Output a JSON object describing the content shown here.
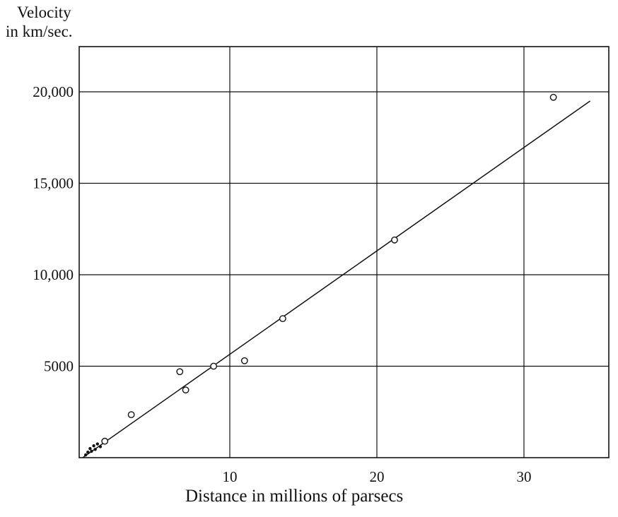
{
  "chart_data": {
    "type": "scatter",
    "ylabel_lines": [
      "Velocity",
      "in km/sec."
    ],
    "xlabel": "Distance in millions of parsecs",
    "xlim": [
      0,
      35
    ],
    "ylim": [
      0,
      22000
    ],
    "x_ticks": [
      {
        "value": 10,
        "label": "10"
      },
      {
        "value": 20,
        "label": "20"
      },
      {
        "value": 30,
        "label": "30"
      }
    ],
    "y_ticks": [
      {
        "value": 5000,
        "label": "5000"
      },
      {
        "value": 10000,
        "label": "10,000"
      },
      {
        "value": 15000,
        "label": "15,000"
      },
      {
        "value": 20000,
        "label": "20,000"
      }
    ],
    "grid": true,
    "series": [
      {
        "marker": "open-circle",
        "points": [
          {
            "x": 1.5,
            "y": 900
          },
          {
            "x": 3.3,
            "y": 2350
          },
          {
            "x": 6.6,
            "y": 4700
          },
          {
            "x": 7.0,
            "y": 3700
          },
          {
            "x": 8.9,
            "y": 5000
          },
          {
            "x": 11.0,
            "y": 5300
          },
          {
            "x": 13.6,
            "y": 7600
          },
          {
            "x": 21.2,
            "y": 11900
          },
          {
            "x": 32.0,
            "y": 19700
          }
        ]
      },
      {
        "marker": "small-dot",
        "points": [
          {
            "x": 0.2,
            "y": 150
          },
          {
            "x": 0.35,
            "y": 300
          },
          {
            "x": 0.5,
            "y": 500
          },
          {
            "x": 0.6,
            "y": 350
          },
          {
            "x": 0.75,
            "y": 650
          },
          {
            "x": 0.85,
            "y": 450
          },
          {
            "x": 1.0,
            "y": 750
          },
          {
            "x": 1.2,
            "y": 600
          }
        ]
      }
    ],
    "fit_line": {
      "x": [
        0,
        34.5
      ],
      "y": [
        0,
        19500
      ]
    }
  }
}
